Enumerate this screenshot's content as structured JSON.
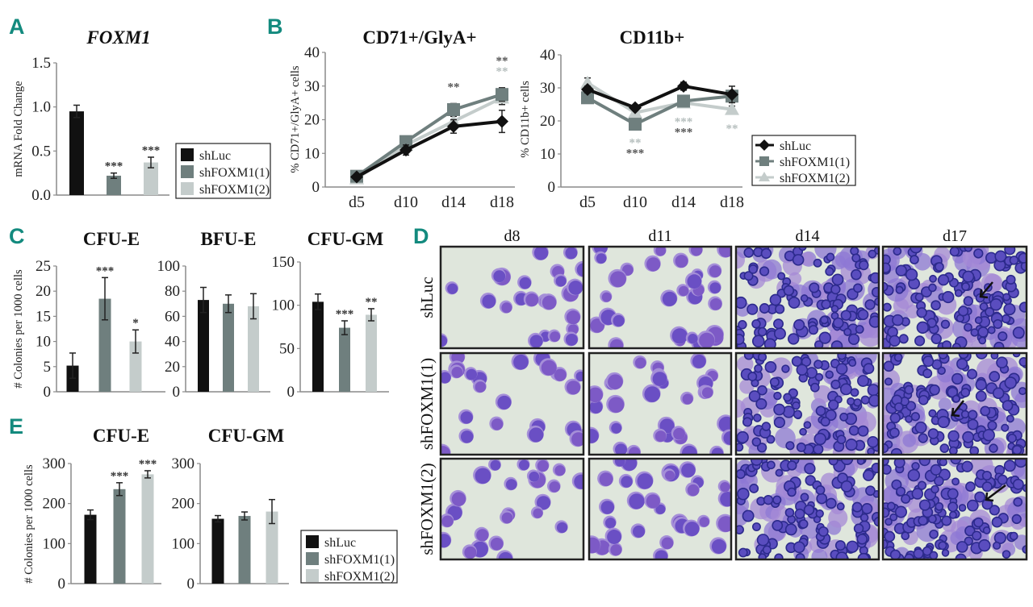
{
  "panel_labels": {
    "A": "A",
    "B": "B",
    "C": "C",
    "D": "D",
    "E": "E"
  },
  "legend": {
    "series": [
      "shLuc",
      "shFOXM1(1)",
      "shFOXM1(2)"
    ]
  },
  "colors": {
    "panel_label": "#138a7e",
    "shLuc": "#111111",
    "shFOXM1(1)": "#6f7f7e",
    "shFOXM1(2)": "#c4cccb",
    "star_dark": "#555555",
    "star_light": "#b5bebd",
    "axis": "#8a8a8a"
  },
  "chart_data": [
    {
      "id": "A",
      "type": "bar",
      "title": "FOXM1",
      "title_italic": true,
      "ylabel": "mRNA Fold Change",
      "ylim": [
        0,
        1.5
      ],
      "yticks": [
        0,
        0.5,
        1.0,
        1.5
      ],
      "ytick_labels": [
        "0.0",
        "0.5",
        "1.0",
        "1.5"
      ],
      "categories": [
        "shLuc",
        "shFOXM1(1)",
        "shFOXM1(2)"
      ],
      "values": [
        0.95,
        0.22,
        0.37
      ],
      "errors": [
        0.07,
        0.03,
        0.06
      ],
      "significance": [
        "",
        "***",
        "***"
      ],
      "legend": "right"
    },
    {
      "id": "B1",
      "type": "line",
      "title": "CD71+/GlyA+",
      "ylabel": "% CD71+/GlyA+ cells",
      "ylim": [
        0,
        40
      ],
      "yticks": [
        0,
        10,
        20,
        30,
        40
      ],
      "ytick_labels": [
        "0",
        "10",
        "20",
        "30",
        "40"
      ],
      "x": [
        "d5",
        "d10",
        "d14",
        "d18"
      ],
      "series": [
        {
          "name": "shLuc",
          "marker": "diamond",
          "values": [
            3,
            11,
            18,
            19.5
          ],
          "errors": [
            0.5,
            1.5,
            2,
            3.3
          ]
        },
        {
          "name": "shFOXM1(1)",
          "marker": "square",
          "values": [
            3.2,
            13.5,
            23,
            27.5
          ],
          "errors": [
            0.5,
            1.2,
            1.8,
            2
          ]
        },
        {
          "name": "shFOXM1(2)",
          "marker": "triangle",
          "values": [
            2.5,
            12.5,
            19.5,
            26.5
          ],
          "errors": [
            0.5,
            1.2,
            1.5,
            2
          ]
        }
      ],
      "significance": [
        {
          "x": "d14",
          "label": "**",
          "tone": "dark"
        },
        {
          "x": "d18",
          "label": "**",
          "tone": "dark"
        },
        {
          "x": "d18",
          "label": "**",
          "tone": "light"
        }
      ]
    },
    {
      "id": "B2",
      "type": "line",
      "title": "CD11b+",
      "ylabel": "% CD11b+ cells",
      "ylim": [
        0,
        40
      ],
      "yticks": [
        0,
        10,
        20,
        30,
        40
      ],
      "ytick_labels": [
        "0",
        "10",
        "20",
        "30",
        "40"
      ],
      "x": [
        "d5",
        "d10",
        "d14",
        "d18"
      ],
      "series": [
        {
          "name": "shLuc",
          "marker": "diamond",
          "values": [
            29.5,
            24,
            30.5,
            28
          ],
          "errors": [
            1,
            0.8,
            1.2,
            2.5
          ]
        },
        {
          "name": "shFOXM1(1)",
          "marker": "square",
          "values": [
            27,
            19,
            26,
            27.5
          ],
          "errors": [
            1,
            0.8,
            1,
            1.5
          ]
        },
        {
          "name": "shFOXM1(2)",
          "marker": "triangle",
          "values": [
            31.5,
            22.5,
            25.5,
            23.5
          ],
          "errors": [
            1.5,
            1,
            1,
            1
          ]
        }
      ],
      "significance": [
        {
          "x": "d10",
          "label": "**",
          "tone": "light"
        },
        {
          "x": "d10",
          "label": "***",
          "tone": "dark"
        },
        {
          "x": "d14",
          "label": "***",
          "tone": "light"
        },
        {
          "x": "d14",
          "label": "***",
          "tone": "dark"
        },
        {
          "x": "d18",
          "label": "**",
          "tone": "light"
        }
      ],
      "legend": "right"
    },
    {
      "id": "C1",
      "type": "bar",
      "title": "CFU-E",
      "ylabel": "# Colonies per 1000 cells",
      "ylim": [
        0,
        25
      ],
      "yticks": [
        0,
        5,
        10,
        15,
        20,
        25
      ],
      "ytick_labels": [
        "0",
        "5",
        "10",
        "15",
        "20",
        "25"
      ],
      "categories": [
        "shLuc",
        "shFOXM1(1)",
        "shFOXM1(2)"
      ],
      "values": [
        5.2,
        18.5,
        10
      ],
      "errors": [
        2.5,
        4.2,
        2.3
      ],
      "significance": [
        "",
        "***",
        "*"
      ]
    },
    {
      "id": "C2",
      "type": "bar",
      "title": "BFU-E",
      "ylabel": "",
      "ylim": [
        0,
        100
      ],
      "yticks": [
        0,
        20,
        40,
        60,
        80,
        100
      ],
      "ytick_labels": [
        "0",
        "20",
        "40",
        "60",
        "80",
        "100"
      ],
      "categories": [
        "shLuc",
        "shFOXM1(1)",
        "shFOXM1(2)"
      ],
      "values": [
        73,
        70,
        68
      ],
      "errors": [
        10,
        7,
        10
      ],
      "significance": [
        "",
        "",
        ""
      ]
    },
    {
      "id": "C3",
      "type": "bar",
      "title": "CFU-GM",
      "ylabel": "",
      "ylim": [
        0,
        150
      ],
      "yticks": [
        0,
        50,
        100,
        150
      ],
      "ytick_labels": [
        "0",
        "50",
        "100",
        "150"
      ],
      "categories": [
        "shLuc",
        "shFOXM1(1)",
        "shFOXM1(2)"
      ],
      "values": [
        104,
        74,
        89
      ],
      "errors": [
        9,
        8,
        7
      ],
      "significance": [
        "",
        "***",
        "**"
      ]
    },
    {
      "id": "E1",
      "type": "bar",
      "title": "CFU-E",
      "ylabel": "# Colonies per 1000 cells",
      "ylim": [
        0,
        300
      ],
      "yticks": [
        0,
        100,
        200,
        300
      ],
      "ytick_labels": [
        "0",
        "100",
        "200",
        "300"
      ],
      "categories": [
        "shLuc",
        "shFOXM1(1)",
        "shFOXM1(2)"
      ],
      "values": [
        172,
        236,
        273
      ],
      "errors": [
        12,
        16,
        9
      ],
      "significance": [
        "",
        "***",
        "***"
      ]
    },
    {
      "id": "E2",
      "type": "bar",
      "title": "CFU-GM",
      "ylabel": "",
      "ylim": [
        0,
        300
      ],
      "yticks": [
        0,
        100,
        200,
        300
      ],
      "ytick_labels": [
        "0",
        "100",
        "200",
        "300"
      ],
      "categories": [
        "shLuc",
        "shFOXM1(1)",
        "shFOXM1(2)"
      ],
      "values": [
        162,
        169,
        180
      ],
      "errors": [
        8,
        10,
        30
      ],
      "significance": [
        "",
        "",
        ""
      ],
      "legend": "right"
    }
  ],
  "panel_d": {
    "columns": [
      "d8",
      "d11",
      "d14",
      "d17"
    ],
    "rows": [
      "shLuc",
      "shFOXM1(1)",
      "shFOXM1(2)"
    ],
    "cell_density": [
      0.1,
      0.2,
      0.85,
      1.0
    ],
    "arrow_column": "d17"
  }
}
